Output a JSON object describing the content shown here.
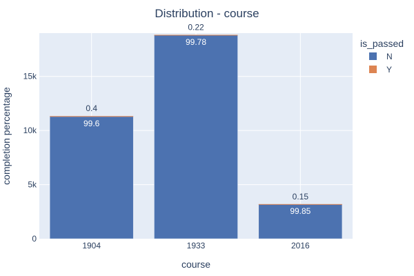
{
  "chart_data": {
    "type": "bar",
    "stacked": true,
    "title": "Distribution - course",
    "xlabel": "course",
    "ylabel": "completion percentage",
    "categories": [
      "1904",
      "1933",
      "2016"
    ],
    "ylim": [
      0,
      19000
    ],
    "yticks": [
      0,
      5000,
      10000,
      15000
    ],
    "ytick_labels": [
      "0",
      "5k",
      "10k",
      "15k"
    ],
    "grid": true,
    "legend": {
      "title": "is_passed",
      "position": "top-right"
    },
    "series": [
      {
        "name": "N",
        "color": "#4c72b0",
        "values": [
          11290,
          18800,
          3195
        ],
        "labels": [
          "99.6",
          "99.78",
          "99.85"
        ]
      },
      {
        "name": "Y",
        "color": "#dd8452",
        "values": [
          45,
          41,
          5
        ],
        "labels": [
          "0.4",
          "0.22",
          "0.15"
        ]
      }
    ]
  },
  "colors": {
    "plot_bg": "#e5ecf6",
    "grid": "#ffffff",
    "text": "#2a3f5f"
  }
}
